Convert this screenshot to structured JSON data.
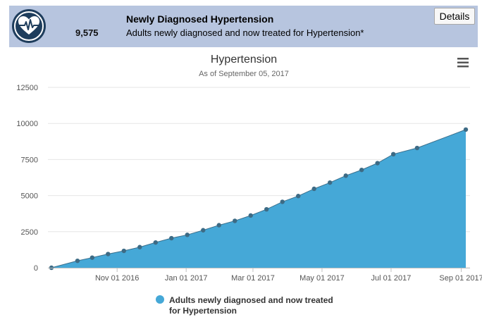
{
  "header": {
    "value": "9,575",
    "title": "Newly Diagnosed Hypertension",
    "subtitle": "Adults newly diagnosed and now treated for Hypertension*",
    "details_label": "Details",
    "logo_icon": "heart-pulse-icon",
    "background_color": "#b7c5df"
  },
  "menu": {
    "icon": "hamburger-menu-icon"
  },
  "chart_data": {
    "type": "area",
    "title": "Hypertension",
    "subtitle": "As of September 05, 2017",
    "xlabel": "",
    "ylabel": "",
    "ylim": [
      0,
      12500
    ],
    "yticks": [
      0,
      2500,
      5000,
      7500,
      10000,
      12500
    ],
    "xlim": [
      "2016-09-04",
      "2017-09-05"
    ],
    "xticks": [
      {
        "date": "2016-11-01",
        "label": "Nov 01 2016"
      },
      {
        "date": "2017-01-01",
        "label": "Jan 01 2017"
      },
      {
        "date": "2017-03-01",
        "label": "Mar 01 2017"
      },
      {
        "date": "2017-05-01",
        "label": "May 01 2017"
      },
      {
        "date": "2017-07-01",
        "label": "Jul 01 2017"
      },
      {
        "date": "2017-09-01",
        "label": "Sep 01 2017"
      }
    ],
    "grid": true,
    "legend_position": "bottom-center",
    "color": "#45a8d7",
    "line_color": "#3a6f8c",
    "series": [
      {
        "name": "Adults newly diagnosed and now treated for Hypertension",
        "name_lines": [
          "Adults newly diagnosed and now treated",
          "for Hypertension"
        ],
        "points": [
          {
            "x": "2016-09-04",
            "y": 0
          },
          {
            "x": "2016-09-27",
            "y": 480
          },
          {
            "x": "2016-10-10",
            "y": 700
          },
          {
            "x": "2016-10-24",
            "y": 950
          },
          {
            "x": "2016-11-07",
            "y": 1170
          },
          {
            "x": "2016-11-21",
            "y": 1430
          },
          {
            "x": "2016-12-05",
            "y": 1750
          },
          {
            "x": "2016-12-19",
            "y": 2050
          },
          {
            "x": "2017-01-02",
            "y": 2280
          },
          {
            "x": "2017-01-16",
            "y": 2600
          },
          {
            "x": "2017-01-30",
            "y": 2950
          },
          {
            "x": "2017-02-13",
            "y": 3250
          },
          {
            "x": "2017-02-27",
            "y": 3620
          },
          {
            "x": "2017-03-13",
            "y": 4050
          },
          {
            "x": "2017-03-27",
            "y": 4570
          },
          {
            "x": "2017-04-10",
            "y": 4970
          },
          {
            "x": "2017-04-24",
            "y": 5470
          },
          {
            "x": "2017-05-08",
            "y": 5900
          },
          {
            "x": "2017-05-22",
            "y": 6380
          },
          {
            "x": "2017-06-05",
            "y": 6780
          },
          {
            "x": "2017-06-19",
            "y": 7250
          },
          {
            "x": "2017-07-03",
            "y": 7870
          },
          {
            "x": "2017-07-24",
            "y": 8300
          },
          {
            "x": "2017-09-05",
            "y": 9575
          }
        ]
      }
    ]
  }
}
